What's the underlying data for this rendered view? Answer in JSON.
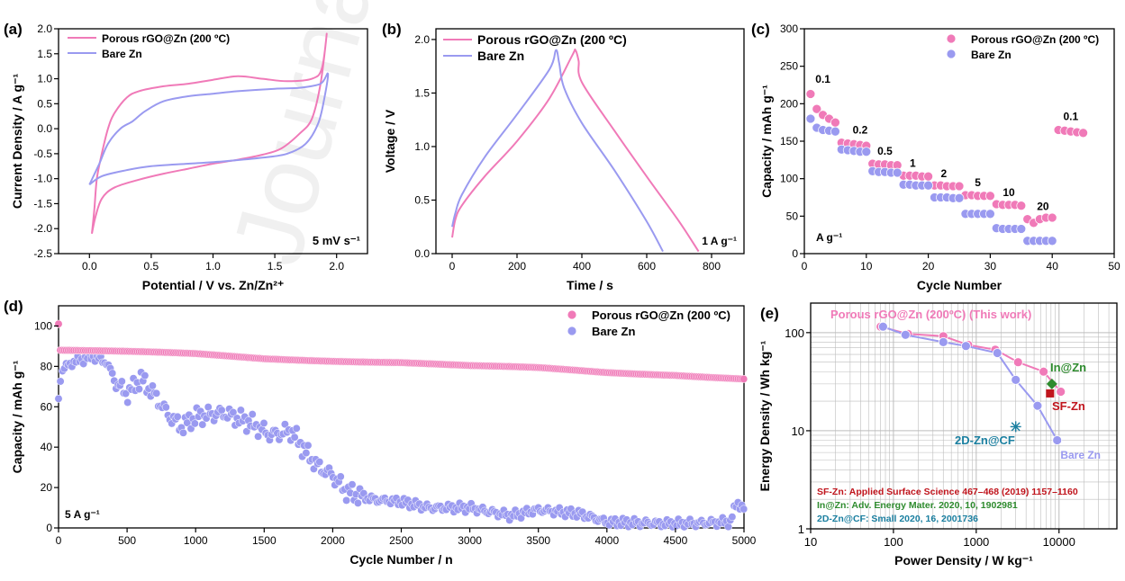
{
  "figure": {
    "watermark": "Journal"
  },
  "colors": {
    "pink": "#F07AB8",
    "pink_fill": "#F59AC8",
    "purple": "#9A9AF0",
    "purple_fill": "#A8A8F5",
    "green": "#2E8B2E",
    "red": "#C0141C",
    "teal": "#1A7FA0",
    "grid": "#BDBDBD"
  },
  "chart_data": [
    {
      "id": "a",
      "type": "line",
      "panel_label": "(a)",
      "xlabel": "Potential / V vs. Zn/Zn²⁺",
      "ylabel": "Current Density / A g⁻¹",
      "xlim": [
        -0.25,
        2.25
      ],
      "ylim": [
        -2.5,
        2.0
      ],
      "xticks": [
        "0.0",
        "0.5",
        "1.0",
        "1.5",
        "2.0"
      ],
      "yticks": [
        "-2.5",
        "-2.0",
        "-1.5",
        "-1.0",
        "-0.5",
        "0.0",
        "0.5",
        "1.0",
        "1.5",
        "2.0"
      ],
      "annotation": "5 mV s⁻¹",
      "series": [
        {
          "name": "Porous rGO@Zn (200 ºC)",
          "color": "pink",
          "points": [
            [
              0.02,
              -2.1
            ],
            [
              0.05,
              -1.75
            ],
            [
              0.1,
              -1.4
            ],
            [
              0.2,
              -1.18
            ],
            [
              0.4,
              -1.02
            ],
            [
              0.6,
              -0.9
            ],
            [
              0.8,
              -0.8
            ],
            [
              1.0,
              -0.7
            ],
            [
              1.2,
              -0.62
            ],
            [
              1.4,
              -0.52
            ],
            [
              1.55,
              -0.4
            ],
            [
              1.7,
              -0.1
            ],
            [
              1.8,
              0.2
            ],
            [
              1.87,
              0.9
            ],
            [
              1.92,
              1.9
            ],
            [
              1.88,
              1.2
            ],
            [
              1.8,
              1.0
            ],
            [
              1.6,
              0.95
            ],
            [
              1.4,
              1.0
            ],
            [
              1.2,
              1.05
            ],
            [
              1.0,
              0.98
            ],
            [
              0.8,
              0.9
            ],
            [
              0.6,
              0.85
            ],
            [
              0.4,
              0.75
            ],
            [
              0.3,
              0.62
            ],
            [
              0.2,
              0.3
            ],
            [
              0.15,
              0.0
            ],
            [
              0.1,
              -0.5
            ],
            [
              0.06,
              -1.0
            ],
            [
              0.04,
              -1.6
            ],
            [
              0.02,
              -2.1
            ]
          ]
        },
        {
          "name": "Bare Zn",
          "color": "purple",
          "points": [
            [
              0.0,
              -1.12
            ],
            [
              0.1,
              -0.95
            ],
            [
              0.3,
              -0.83
            ],
            [
              0.5,
              -0.75
            ],
            [
              0.8,
              -0.7
            ],
            [
              1.1,
              -0.65
            ],
            [
              1.4,
              -0.58
            ],
            [
              1.6,
              -0.5
            ],
            [
              1.75,
              -0.3
            ],
            [
              1.85,
              0.1
            ],
            [
              1.9,
              0.6
            ],
            [
              1.93,
              1.1
            ],
            [
              1.87,
              0.9
            ],
            [
              1.7,
              0.82
            ],
            [
              1.5,
              0.8
            ],
            [
              1.2,
              0.75
            ],
            [
              1.0,
              0.7
            ],
            [
              0.8,
              0.65
            ],
            [
              0.6,
              0.55
            ],
            [
              0.45,
              0.35
            ],
            [
              0.35,
              0.15
            ],
            [
              0.25,
              0.0
            ],
            [
              0.15,
              -0.3
            ],
            [
              0.08,
              -0.7
            ],
            [
              0.0,
              -1.12
            ]
          ]
        }
      ]
    },
    {
      "id": "b",
      "type": "line",
      "panel_label": "(b)",
      "xlabel": "Time / s",
      "ylabel": "Voltage / V",
      "xlim": [
        -50,
        900
      ],
      "ylim": [
        0,
        2.1
      ],
      "xticks": [
        "0",
        "200",
        "400",
        "600",
        "800"
      ],
      "yticks": [
        "0.0",
        "0.5",
        "1.0",
        "1.5",
        "2.0"
      ],
      "annotation": "1 A g⁻¹",
      "series": [
        {
          "name": "Porous rGO@Zn (200 ºC)",
          "color": "pink",
          "points": [
            [
              0,
              0.15
            ],
            [
              10,
              0.32
            ],
            [
              30,
              0.45
            ],
            [
              100,
              0.72
            ],
            [
              200,
              1.05
            ],
            [
              300,
              1.45
            ],
            [
              370,
              1.85
            ],
            [
              380,
              1.9
            ],
            [
              390,
              1.8
            ],
            [
              400,
              1.6
            ],
            [
              500,
              1.15
            ],
            [
              600,
              0.72
            ],
            [
              700,
              0.3
            ],
            [
              760,
              0.02
            ]
          ]
        },
        {
          "name": "Bare Zn",
          "color": "purple",
          "points": [
            [
              0,
              0.25
            ],
            [
              10,
              0.38
            ],
            [
              30,
              0.55
            ],
            [
              100,
              0.9
            ],
            [
              200,
              1.3
            ],
            [
              300,
              1.72
            ],
            [
              320,
              1.9
            ],
            [
              330,
              1.78
            ],
            [
              345,
              1.55
            ],
            [
              400,
              1.22
            ],
            [
              500,
              0.78
            ],
            [
              600,
              0.3
            ],
            [
              650,
              0.02
            ]
          ]
        }
      ]
    },
    {
      "id": "c",
      "type": "scatter",
      "panel_label": "(c)",
      "xlabel": "Cycle Number",
      "ylabel": "Capacity / mAh g⁻¹",
      "xlim": [
        0,
        50
      ],
      "ylim": [
        0,
        300
      ],
      "xticks": [
        "0",
        "10",
        "20",
        "30",
        "40",
        "50"
      ],
      "yticks": [
        "0",
        "50",
        "100",
        "150",
        "200",
        "250",
        "300"
      ],
      "annotation": "A g⁻¹",
      "rate_labels": [
        {
          "text": "0.1",
          "x": 3,
          "y": 228
        },
        {
          "text": "0.2",
          "x": 9,
          "y": 160
        },
        {
          "text": "0.5",
          "x": 13,
          "y": 132
        },
        {
          "text": "1",
          "x": 17.5,
          "y": 116
        },
        {
          "text": "2",
          "x": 22.5,
          "y": 102
        },
        {
          "text": "5",
          "x": 28,
          "y": 90
        },
        {
          "text": "10",
          "x": 33,
          "y": 77
        },
        {
          "text": "20",
          "x": 38.5,
          "y": 58
        },
        {
          "text": "0.1",
          "x": 43,
          "y": 178
        }
      ],
      "series": [
        {
          "name": "Porous rGO@Zn (200 ºC)",
          "color": "pink",
          "values": [
            213,
            193,
            185,
            180,
            175,
            148,
            147,
            146,
            145,
            144,
            120,
            119,
            119,
            118,
            118,
            104,
            104,
            104,
            103,
            103,
            91,
            91,
            90,
            90,
            90,
            78,
            78,
            77,
            77,
            77,
            66,
            65,
            65,
            65,
            64,
            46,
            41,
            46,
            48,
            48,
            165,
            164,
            163,
            162,
            161
          ]
        },
        {
          "name": "Bare Zn",
          "color": "purple",
          "values": [
            180,
            168,
            165,
            164,
            163,
            139,
            138,
            137,
            136,
            136,
            110,
            109,
            109,
            108,
            108,
            92,
            92,
            91,
            91,
            91,
            75,
            75,
            75,
            74,
            74,
            53,
            53,
            53,
            53,
            53,
            34,
            33,
            33,
            33,
            33,
            17,
            17,
            17,
            17,
            17
          ]
        }
      ]
    },
    {
      "id": "d",
      "type": "scatter",
      "panel_label": "(d)",
      "xlabel": "Cycle Number / n",
      "ylabel": "Capacity / mAh g⁻¹",
      "xlim": [
        0,
        5000
      ],
      "ylim": [
        0,
        110
      ],
      "xticks": [
        "0",
        "500",
        "1000",
        "1500",
        "2000",
        "2500",
        "3000",
        "3500",
        "4000",
        "4500",
        "5000"
      ],
      "yticks": [
        "0",
        "20",
        "40",
        "60",
        "80",
        "100"
      ],
      "annotation": "5 A g⁻¹",
      "series": [
        {
          "name": "Porous rGO@Zn (200 ºC)",
          "color": "pink",
          "trend": [
            [
              0,
              101
            ],
            [
              5,
              88
            ],
            [
              500,
              87
            ],
            [
              1000,
              86
            ],
            [
              1500,
              84
            ],
            [
              2000,
              83
            ],
            [
              2500,
              82
            ],
            [
              3000,
              80
            ],
            [
              3500,
              79
            ],
            [
              4000,
              77
            ],
            [
              4500,
              76
            ],
            [
              5000,
              74
            ]
          ]
        },
        {
          "name": "Bare Zn",
          "color": "purple",
          "trend": [
            [
              0,
              64
            ],
            [
              20,
              78
            ],
            [
              100,
              82
            ],
            [
              250,
              85
            ],
            [
              350,
              82
            ],
            [
              420,
              72
            ],
            [
              500,
              66
            ],
            [
              600,
              74
            ],
            [
              700,
              66
            ],
            [
              800,
              56
            ],
            [
              900,
              50
            ],
            [
              1000,
              55
            ],
            [
              1200,
              57
            ],
            [
              1400,
              52
            ],
            [
              1550,
              46
            ],
            [
              1700,
              48
            ],
            [
              1800,
              38
            ],
            [
              1900,
              30
            ],
            [
              2000,
              26
            ],
            [
              2100,
              18
            ],
            [
              2300,
              14
            ],
            [
              2500,
              13
            ],
            [
              2700,
              10
            ],
            [
              3000,
              10
            ],
            [
              3300,
              6
            ],
            [
              3500,
              9
            ],
            [
              3800,
              7
            ],
            [
              4000,
              3
            ],
            [
              4500,
              2
            ],
            [
              4900,
              3
            ],
            [
              4950,
              13
            ],
            [
              5000,
              9
            ]
          ]
        }
      ]
    },
    {
      "id": "e",
      "type": "scatter",
      "panel_label": "(e)",
      "xscale": "log",
      "yscale": "log",
      "xlabel": "Power Density / W kg⁻¹",
      "ylabel": "Energy Density / Wh kg⁻¹",
      "xlim": [
        10,
        50000
      ],
      "ylim": [
        1,
        200
      ],
      "xticks": [
        "10",
        "100",
        "1000",
        "10000"
      ],
      "yticks": [
        "1",
        "10",
        "100"
      ],
      "series": [
        {
          "name": "Porous rGO@Zn (200ºC) (This work)",
          "color": "pink",
          "points": [
            [
              70,
              115
            ],
            [
              150,
              97
            ],
            [
              400,
              92
            ],
            [
              800,
              75
            ],
            [
              1700,
              67
            ],
            [
              3200,
              50
            ],
            [
              6500,
              40
            ],
            [
              10500,
              25
            ]
          ]
        },
        {
          "name": "Bare Zn",
          "color": "purple",
          "points": [
            [
              75,
              115
            ],
            [
              140,
              95
            ],
            [
              400,
              80
            ],
            [
              750,
              73
            ],
            [
              1800,
              62
            ],
            [
              3000,
              33
            ],
            [
              5500,
              18
            ],
            [
              9500,
              8
            ]
          ]
        }
      ],
      "refs": [
        {
          "name": "In@Zn",
          "x": 8200,
          "y": 30,
          "color": "green",
          "marker": "diamond"
        },
        {
          "name": "SF-Zn",
          "x": 7800,
          "y": 24,
          "color": "red",
          "marker": "square"
        },
        {
          "name": "2D-Zn@CF",
          "x": 3000,
          "y": 11,
          "color": "teal",
          "marker": "star"
        }
      ],
      "citations": [
        {
          "text": "SF-Zn: Applied Surface Science 467–468 (2019) 1157–1160",
          "color": "red"
        },
        {
          "text": "In@Zn: Adv. Energy Mater. 2020, 10, 1902981",
          "color": "green"
        },
        {
          "text": "2D-Zn@CF: Small 2020, 16, 2001736",
          "color": "teal"
        }
      ]
    }
  ]
}
